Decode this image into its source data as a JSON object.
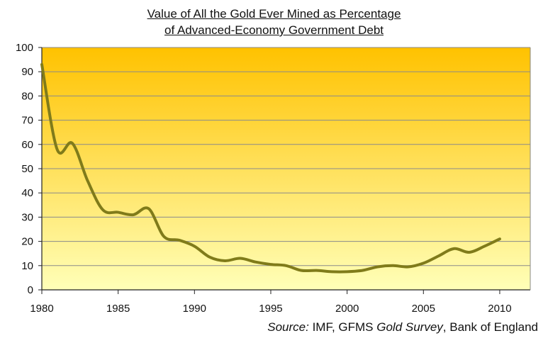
{
  "chart_data": {
    "type": "line",
    "title_line1": "Value of All the Gold Ever Mined as Percentage",
    "title_line2": "of Advanced-Economy Government Debt",
    "xlabel": "",
    "ylabel": "",
    "xlim": [
      1980,
      2012
    ],
    "ylim": [
      0,
      100
    ],
    "x_ticks": [
      1980,
      1985,
      1990,
      1995,
      2000,
      2005,
      2010
    ],
    "y_ticks": [
      0,
      10,
      20,
      30,
      40,
      50,
      60,
      70,
      80,
      90,
      100
    ],
    "grid": true,
    "line_color": "#807b1a",
    "background_top": "#ffc200",
    "background_bottom": "#ffffb8",
    "series": [
      {
        "x": [
          1980,
          1981,
          1982,
          1983,
          1984,
          1985,
          1986,
          1987,
          1988,
          1989,
          1990,
          1991,
          1992,
          1993,
          1994,
          1995,
          1996,
          1997,
          1998,
          1999,
          2000,
          2001,
          2002,
          2003,
          2004,
          2005,
          2006,
          2007,
          2008,
          2009,
          2010
        ],
        "y": [
          93,
          58,
          60.5,
          45,
          33,
          32,
          31,
          33.5,
          22,
          20.5,
          18,
          13.5,
          12,
          13,
          11.5,
          10.5,
          10,
          8,
          8,
          7.5,
          7.5,
          8,
          9.5,
          10,
          9.5,
          11,
          14,
          17,
          15.5,
          18,
          21
        ]
      }
    ]
  },
  "source": {
    "prefix": "Source:",
    "part1": " IMF, GFMS ",
    "italic": "Gold Survey",
    "part2": ", Bank of England"
  }
}
